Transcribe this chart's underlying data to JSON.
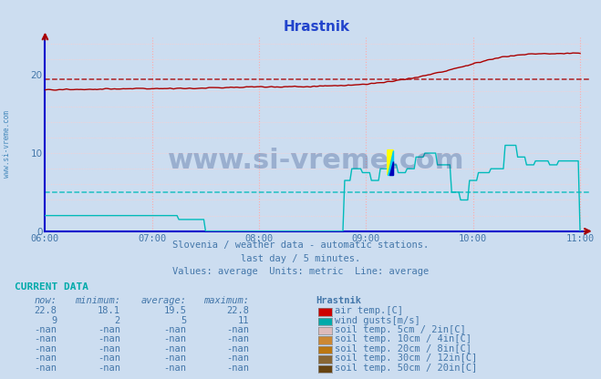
{
  "title": "Hrastnik",
  "title_color": "#2244cc",
  "bg_color": "#ccddf0",
  "plot_bg_color": "#ccddf0",
  "axis_color": "#0000cc",
  "grid_color_v": "#ffaaaa",
  "grid_color_h": "#ffcccc",
  "xmin": 0,
  "xmax": 300,
  "ymin": 0,
  "ymax": 25,
  "yticks": [
    0,
    10,
    20
  ],
  "xtick_pos": [
    0,
    60,
    120,
    180,
    240,
    300
  ],
  "xtick_labels": [
    "06:00",
    "07:00",
    "08:00",
    "09:00",
    "10:00",
    "11:00"
  ],
  "air_temp_color": "#aa0000",
  "wind_gusts_color": "#00bbbb",
  "air_temp_avg": 19.5,
  "wind_gusts_avg": 5.0,
  "watermark": "www.si-vreme.com",
  "watermark_color": "#1a3a7a",
  "side_label": "www.si-vreme.com",
  "subtitle1": "Slovenia / weather data - automatic stations.",
  "subtitle2": "last day / 5 minutes.",
  "subtitle3": "Values: average  Units: metric  Line: average",
  "text_color": "#4477aa",
  "current_data_color": "#00aaaa",
  "legend_items": [
    {
      "label": "air temp.[C]",
      "color": "#cc0000"
    },
    {
      "label": "wind gusts[m/s]",
      "color": "#00aaaa"
    },
    {
      "label": "soil temp. 5cm / 2in[C]",
      "color": "#ddbbbb"
    },
    {
      "label": "soil temp. 10cm / 4in[C]",
      "color": "#cc8833"
    },
    {
      "label": "soil temp. 20cm / 8in[C]",
      "color": "#bb7711"
    },
    {
      "label": "soil temp. 30cm / 12in[C]",
      "color": "#886633"
    },
    {
      "label": "soil temp. 50cm / 20in[C]",
      "color": "#664411"
    }
  ],
  "table_headers": [
    "now:",
    "minimum:",
    "average:",
    "maximum:",
    "Hrastnik"
  ],
  "table_rows": [
    [
      "22.8",
      "18.1",
      "19.5",
      "22.8"
    ],
    [
      "9",
      "2",
      "5",
      "11"
    ],
    [
      "-nan",
      "-nan",
      "-nan",
      "-nan"
    ],
    [
      "-nan",
      "-nan",
      "-nan",
      "-nan"
    ],
    [
      "-nan",
      "-nan",
      "-nan",
      "-nan"
    ],
    [
      "-nan",
      "-nan",
      "-nan",
      "-nan"
    ],
    [
      "-nan",
      "-nan",
      "-nan",
      "-nan"
    ]
  ]
}
